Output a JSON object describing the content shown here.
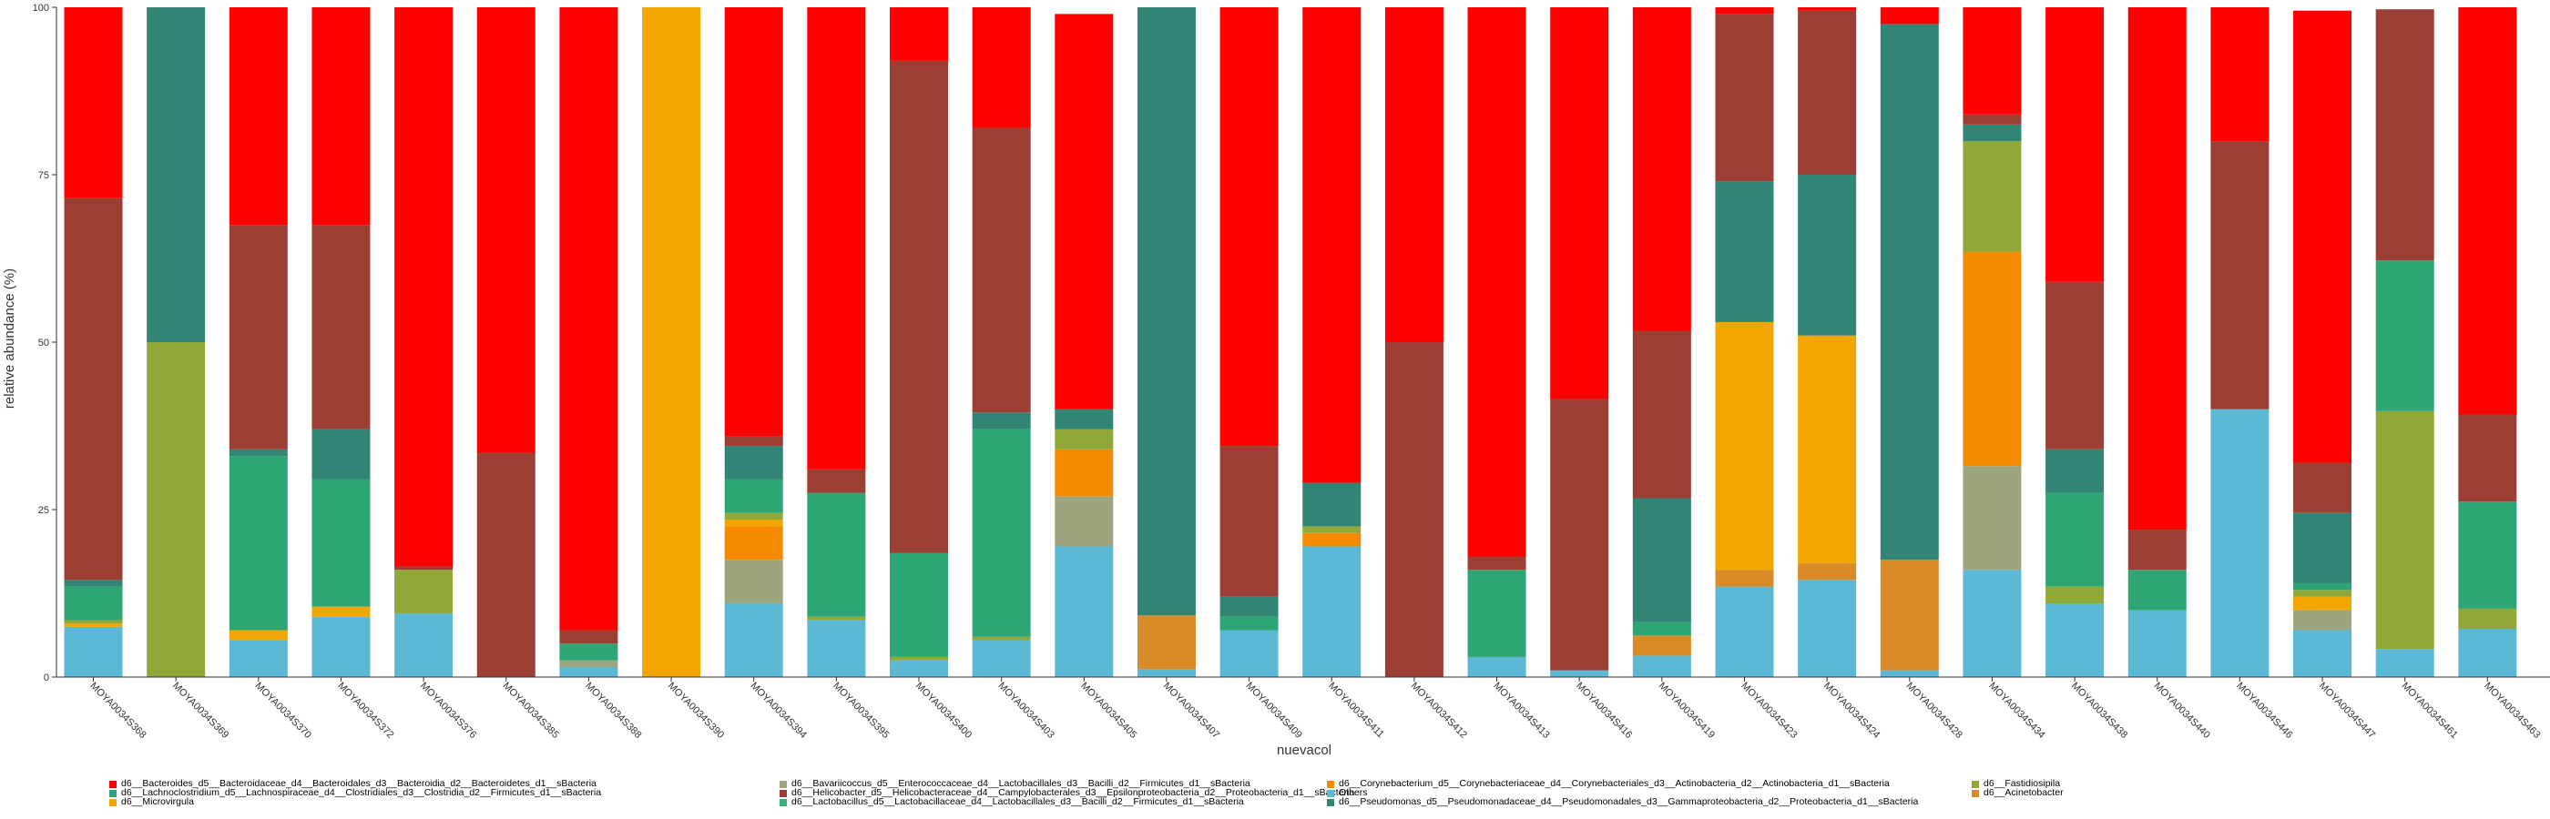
{
  "chart_data": {
    "type": "bar",
    "stacked": true,
    "xlabel": "nuevacol",
    "ylabel": "relative abundance (%)",
    "ylim": [
      0,
      100
    ],
    "yticks": [
      0,
      25,
      50,
      75,
      100
    ],
    "grid": false,
    "legend_position": "bottom",
    "categories": [
      "MOYA0034S368",
      "MOYA0034S369",
      "MOYA0034S370",
      "MOYA0034S372",
      "MOYA0034S376",
      "MOYA0034S385",
      "MOYA0034S388",
      "MOYA0034S390",
      "MOYA0034S394",
      "MOYA0034S395",
      "MOYA0034S400",
      "MOYA0034S403",
      "MOYA0034S405",
      "MOYA0034S407",
      "MOYA0034S409",
      "MOYA0034S411",
      "MOYA0034S412",
      "MOYA0034S413",
      "MOYA0034S416",
      "MOYA0034S419",
      "MOYA0034S423",
      "MOYA0034S424",
      "MOYA0034S428",
      "MOYA0034S434",
      "MOYA0034S438",
      "MOYA0034S440",
      "MOYA0034S446",
      "MOYA0034S447",
      "MOYA0034S461",
      "MOYA0034S463"
    ],
    "series": [
      {
        "name": "Others",
        "color": "#5BB9D6",
        "values": [
          7.5,
          0,
          5.5,
          9,
          9.5,
          0,
          1.5,
          0,
          11,
          8.5,
          2.5,
          5.5,
          19.5,
          1.2,
          7,
          19.5,
          0,
          3,
          1,
          3.2,
          13.5,
          14.5,
          1,
          16,
          11,
          10,
          40,
          7,
          4.2,
          7.2
        ]
      },
      {
        "name": "d6__Acinetobacter",
        "color": "#D98B28",
        "values": [
          0,
          0,
          0,
          0,
          0,
          0,
          0,
          0,
          0,
          0,
          0,
          0,
          0,
          8,
          0,
          0,
          0,
          0,
          0,
          3,
          2.5,
          2.5,
          16.5,
          0,
          0,
          0,
          0,
          0,
          0,
          0
        ]
      },
      {
        "name": "d6__Bavariicoccus_d5__Enterococcaceae_d4__Lactobacillales_d3__Bacilli_d2__Firmicutes_d1__sBacteria",
        "color": "#9CA57E",
        "values": [
          0,
          0,
          0,
          0,
          0,
          0,
          1,
          0,
          6.5,
          0,
          0,
          0,
          7.5,
          0,
          0,
          0,
          0,
          0,
          0,
          0,
          0,
          0,
          0,
          15.5,
          0,
          0,
          0,
          3,
          0,
          0
        ]
      },
      {
        "name": "d6__Corynebacterium_d5__Corynebacteriaceae_d4__Corynebacteriales_d3__Actinobacteria_d2__Actinobacteria_d1__sBacteria",
        "color": "#F58A00",
        "values": [
          0,
          0,
          0,
          0,
          0,
          0,
          0,
          0,
          5,
          0,
          0,
          0,
          7,
          0,
          0,
          2,
          0,
          0,
          0,
          0,
          0,
          0,
          0,
          32,
          0,
          0,
          0,
          0,
          0,
          0
        ]
      },
      {
        "name": "d6__Microvirgula",
        "color": "#F4A600",
        "values": [
          0.5,
          0,
          1.5,
          1.5,
          0,
          0,
          0,
          100,
          1,
          0,
          0,
          0,
          0,
          0,
          0,
          0,
          0,
          0,
          0,
          0,
          37,
          34,
          0,
          0,
          0,
          0,
          0,
          2,
          0,
          0
        ]
      },
      {
        "name": "d6__Fastidiosipila",
        "color": "#8FA838",
        "values": [
          0.5,
          50,
          0,
          0,
          6.5,
          0,
          0,
          0,
          1,
          0.5,
          0.5,
          0.5,
          3,
          0,
          0,
          1,
          0,
          0,
          0,
          0,
          0,
          0,
          0,
          16.5,
          2.5,
          0,
          0,
          1,
          35.5,
          3
        ]
      },
      {
        "name": "d6__Lactobacillus_d5__Lactobacillaceae_d4__Lactobacillales_d3__Bacilli_d2__Firmicutes_d1__sBacteria",
        "color": "#3AAF7F",
        "values": [
          0,
          0,
          0,
          0,
          0,
          0,
          0,
          0,
          0,
          0,
          0,
          0,
          0,
          0,
          0,
          0,
          0,
          0,
          0,
          0,
          0,
          0,
          0,
          0,
          0,
          0,
          0,
          0,
          0,
          0
        ]
      },
      {
        "name": "d6__Lachnoclostridium_d5__Lachnospiraceae_d4__Clostridiales_d3__Clostridia_d2__Firmicutes_d1__sBacteria",
        "color": "#2EA574",
        "values": [
          5,
          0,
          26,
          19,
          0,
          0,
          2.5,
          0,
          5,
          18.5,
          15.5,
          31,
          0,
          0,
          2,
          0,
          0,
          13,
          0,
          2,
          0,
          0,
          0,
          0,
          14,
          6,
          0,
          1,
          22.5,
          16
        ]
      },
      {
        "name": "d6__Pseudomonas_d5__Pseudomonadaceae_d4__Pseudomonadales_d3__Gammaproteobacteria_d2__Proteobacteria_d1__sBacteria",
        "color": "#328474",
        "values": [
          1,
          50,
          1,
          7.5,
          0,
          0,
          0,
          0,
          5,
          0,
          0,
          2.5,
          3,
          90.8,
          3,
          6.5,
          0,
          0,
          0,
          18.5,
          21,
          24,
          80,
          2.5,
          6.5,
          0,
          0,
          10.5,
          0,
          0
        ]
      },
      {
        "name": "d6__Helicobacter_d5__Helicobacteraceae_d4__Campylobacterales_d3__Epsilonproteobacteria_d2__Proteobacteria_d1__sBacteria",
        "color": "#9B3E33",
        "values": [
          57,
          0,
          33.5,
          30.5,
          0.5,
          33.5,
          2,
          0,
          1.5,
          3.5,
          73.5,
          42.5,
          0,
          0,
          22.5,
          0,
          50,
          2,
          40.5,
          25,
          25,
          24.5,
          0,
          1.5,
          25,
          6,
          40,
          7.5,
          37.5,
          13
        ]
      },
      {
        "name": "d6__Bacteroides_d5__Bacteroidaceae_d4__Bacteroidales_d3__Bacteroidia_d2__Bacteroidetes_d1__sBacteria",
        "color": "#FF0000",
        "values": [
          28.5,
          0,
          32.5,
          32.5,
          83.5,
          66.5,
          93,
          0,
          64,
          69,
          8,
          18,
          59,
          0,
          65.5,
          71,
          50,
          82,
          58.5,
          48.3,
          1,
          0.5,
          2.5,
          16,
          41,
          78,
          20,
          67.5,
          0,
          60.8
        ]
      }
    ],
    "legend": [
      {
        "label": "d6__Bacteroides_d5__Bacteroidaceae_d4__Bacteroidales_d3__Bacteroidia_d2__Bacteroidetes_d1__sBacteria",
        "color": "#FF0000"
      },
      {
        "label": "d6__Lachnoclostridium_d5__Lachnospiraceae_d4__Clostridiales_d3__Clostridia_d2__Firmicutes_d1__sBacteria",
        "color": "#2EA574"
      },
      {
        "label": "d6__Microvirgula",
        "color": "#F4A600"
      },
      {
        "label": "d6__Bavariicoccus_d5__Enterococcaceae_d4__Lactobacillales_d3__Bacilli_d2__Firmicutes_d1__sBacteria",
        "color": "#9CA57E"
      },
      {
        "label": "d6__Helicobacter_d5__Helicobacteraceae_d4__Campylobacterales_d3__Epsilonproteobacteria_d2__Proteobacteria_d1__sBacteria",
        "color": "#9B3E33"
      },
      {
        "label": "d6__Lactobacillus_d5__Lactobacillaceae_d4__Lactobacillales_d3__Bacilli_d2__Firmicutes_d1__sBacteria",
        "color": "#3AAF7F"
      },
      {
        "label": "d6__Corynebacterium_d5__Corynebacteriaceae_d4__Corynebacteriales_d3__Actinobacteria_d2__Actinobacteria_d1__sBacteria",
        "color": "#F58A00"
      },
      {
        "label": "Others",
        "color": "#5BB9D6"
      },
      {
        "label": "d6__Pseudomonas_d5__Pseudomonadaceae_d4__Pseudomonadales_d3__Gammaproteobacteria_d2__Proteobacteria_d1__sBacteria",
        "color": "#328474"
      },
      {
        "label": "d6__Fastidiosipila",
        "color": "#8FA838"
      },
      {
        "label": "d6__Acinetobacter",
        "color": "#D98B28"
      }
    ]
  }
}
